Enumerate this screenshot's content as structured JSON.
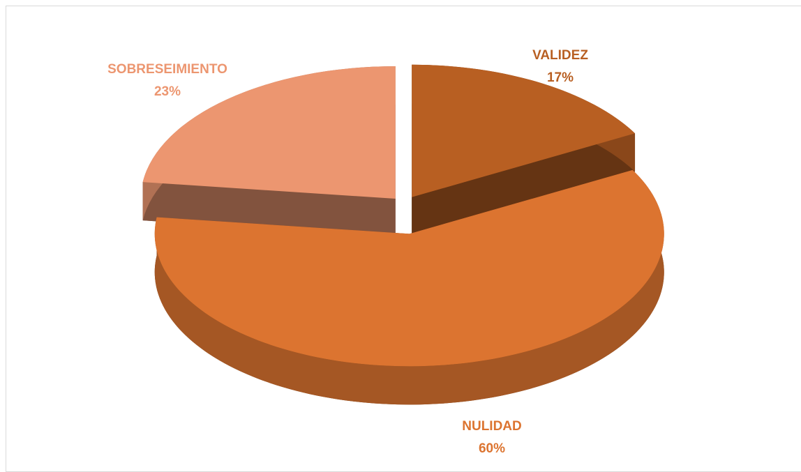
{
  "chart_data": {
    "type": "pie",
    "categories": [
      "VALIDEZ",
      "NULIDAD",
      "SOBRESEIMIENTO"
    ],
    "values": [
      17,
      60,
      23
    ],
    "value_labels": [
      "17%",
      "60%",
      "23%"
    ],
    "colors": [
      "#b85f22",
      "#dc7430",
      "#ec9670"
    ]
  }
}
